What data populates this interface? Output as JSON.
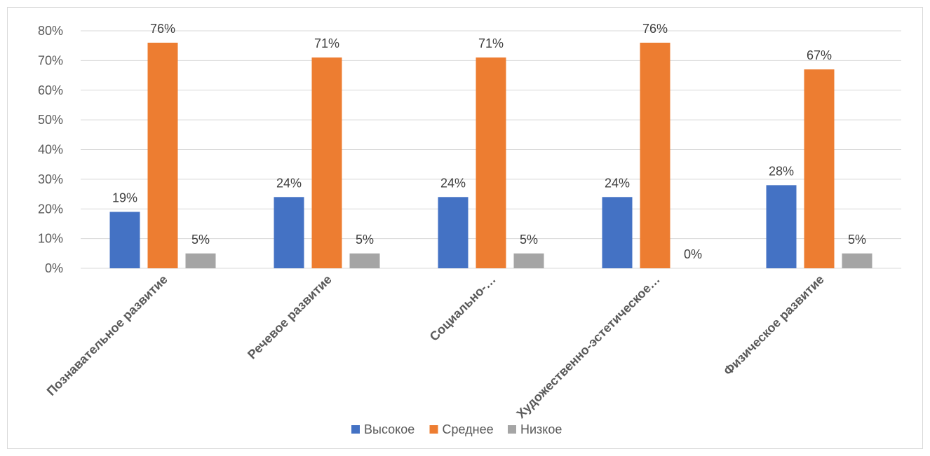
{
  "chart_data": {
    "type": "bar",
    "categories": [
      "Познавательное развитие",
      "Речевое развитие",
      "Социально-…",
      "Художественно-эстетическое…",
      "Физическое развитие"
    ],
    "series": [
      {
        "name": "Высокое",
        "color": "#4472c4",
        "values": [
          19,
          24,
          24,
          24,
          28
        ],
        "labels": [
          "19%",
          "24%",
          "24%",
          "24%",
          "28%"
        ]
      },
      {
        "name": "Среднее",
        "color": "#ed7d31",
        "values": [
          76,
          71,
          71,
          76,
          67
        ],
        "labels": [
          "76%",
          "71%",
          "71%",
          "76%",
          "67%"
        ]
      },
      {
        "name": "Низкое",
        "color": "#a5a5a5",
        "values": [
          5,
          5,
          5,
          0,
          5
        ],
        "labels": [
          "5%",
          "5%",
          "5%",
          "0%",
          "5%"
        ]
      }
    ],
    "y_ticks": [
      "0%",
      "10%",
      "20%",
      "30%",
      "40%",
      "50%",
      "60%",
      "70%",
      "80%"
    ],
    "ylim": [
      0,
      80
    ],
    "grid": true,
    "legend_position": "bottom",
    "title": "",
    "xlabel": "",
    "ylabel": ""
  }
}
